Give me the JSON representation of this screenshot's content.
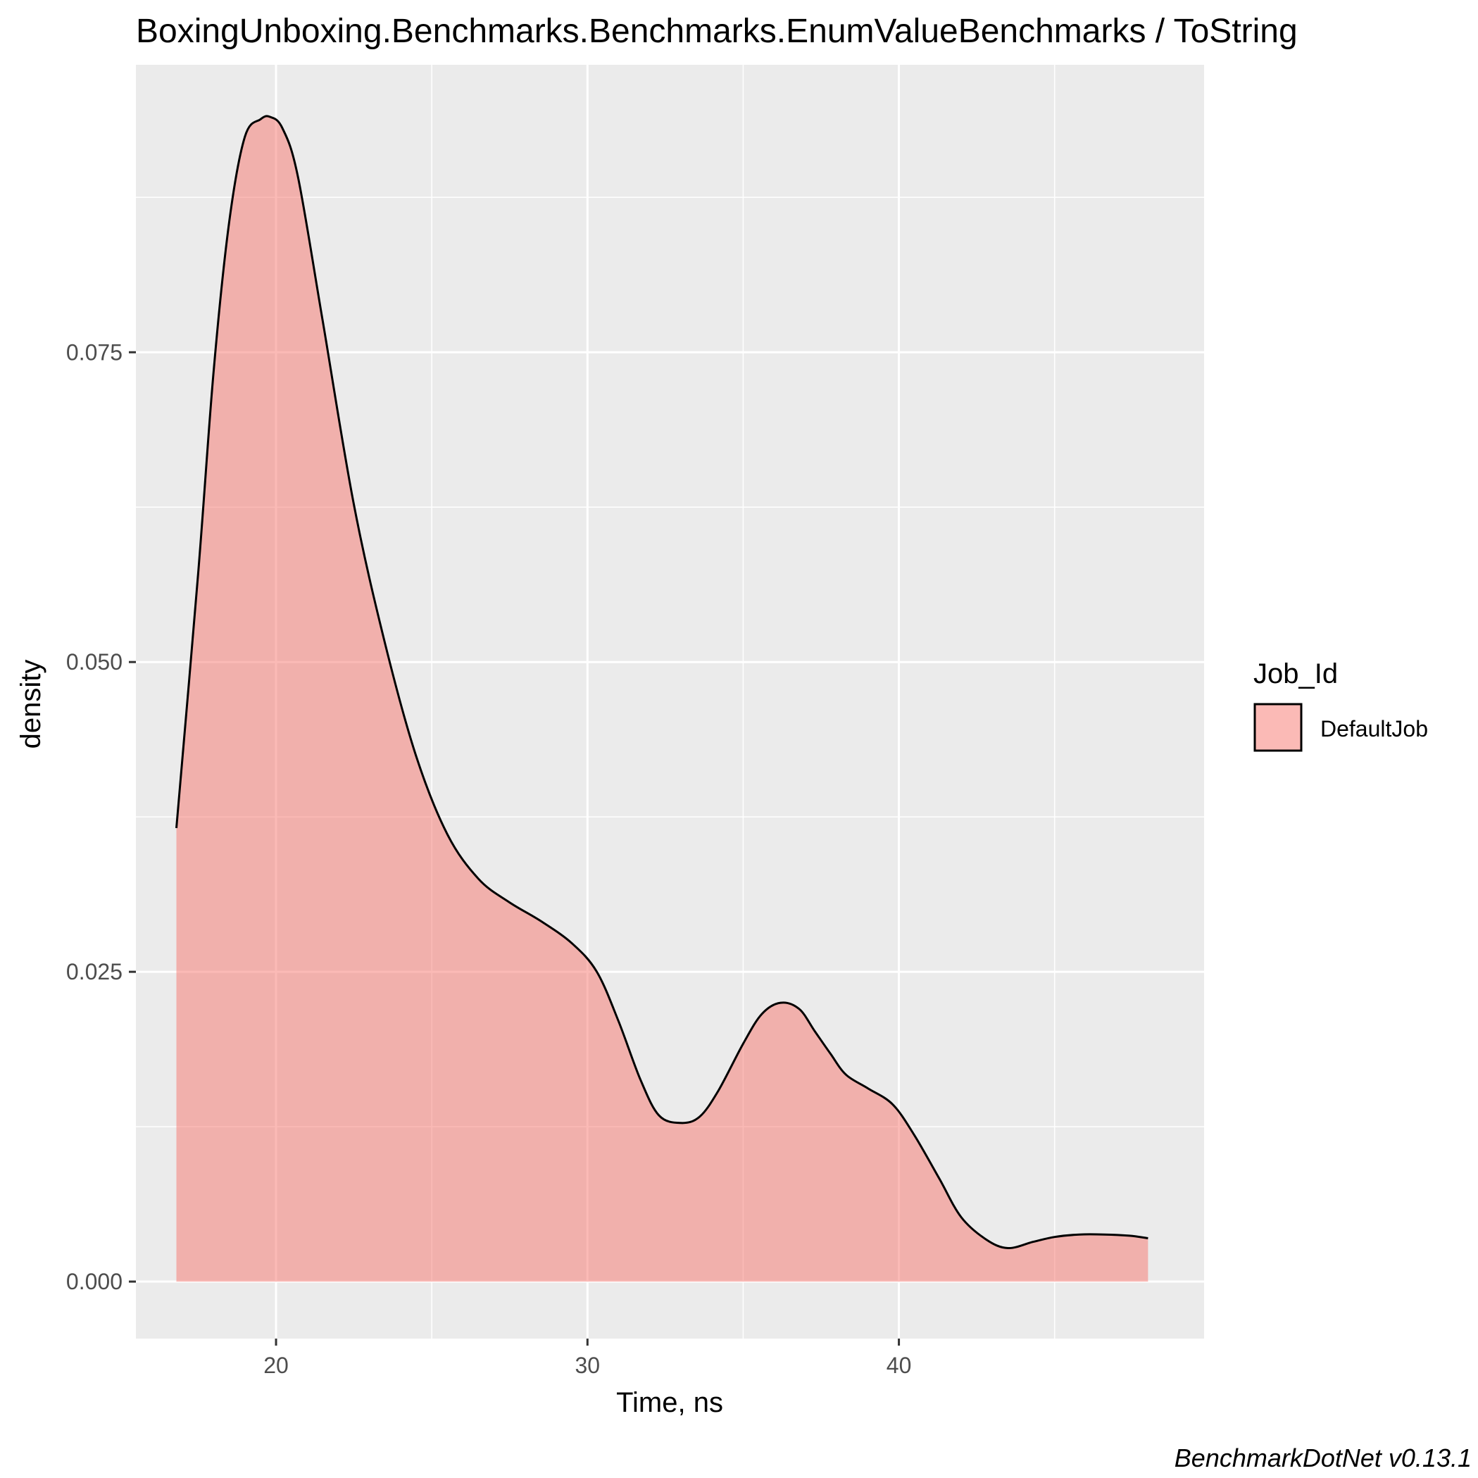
{
  "chart_data": {
    "type": "area",
    "title": "BoxingUnboxing.Benchmarks.Benchmarks.EnumValueBenchmarks / ToString",
    "xlabel": "Time, ns",
    "ylabel": "density",
    "caption": "BenchmarkDotNet v0.13.1",
    "xlim": [
      15.5,
      49.8
    ],
    "ylim": [
      -0.0046,
      0.0982
    ],
    "x_ticks": [
      20,
      30,
      40
    ],
    "x_tick_labels": [
      "20",
      "30",
      "40"
    ],
    "x_minor_ticks": [
      25,
      35,
      45
    ],
    "y_ticks": [
      0,
      0.025,
      0.05,
      0.075
    ],
    "y_tick_labels": [
      "0.000",
      "0.025",
      "0.050",
      "0.075"
    ],
    "y_minor_ticks": [
      0.0125,
      0.0375,
      0.0625,
      0.0875
    ],
    "grid": true,
    "panel_background": "#ebebeb",
    "fill_color": "#f8766d",
    "fill_opacity": 0.5,
    "line_color": "#000000",
    "legend": {
      "title": "Job_Id",
      "position": "right",
      "entries": [
        "DefaultJob"
      ]
    },
    "series": [
      {
        "name": "DefaultJob",
        "x": [
          16.8,
          17.5,
          18.0,
          18.5,
          19.0,
          19.5,
          19.8,
          20.2,
          20.7,
          21.5,
          22.5,
          23.5,
          24.5,
          25.5,
          26.5,
          27.5,
          28.5,
          29.5,
          30.3,
          31.0,
          31.7,
          32.3,
          33.0,
          33.6,
          34.2,
          35.0,
          35.6,
          36.2,
          36.8,
          37.3,
          37.8,
          38.3,
          39.0,
          39.8,
          40.5,
          41.3,
          42.0,
          42.8,
          43.5,
          44.3,
          45.0,
          45.8,
          46.6,
          47.4,
          48.0
        ],
        "y": [
          0.0366,
          0.0572,
          0.0736,
          0.0856,
          0.0924,
          0.0938,
          0.094,
          0.0931,
          0.0892,
          0.0775,
          0.0627,
          0.0515,
          0.0424,
          0.0361,
          0.0325,
          0.0306,
          0.0291,
          0.0273,
          0.025,
          0.021,
          0.0163,
          0.0134,
          0.0128,
          0.0133,
          0.0154,
          0.0192,
          0.0216,
          0.0225,
          0.022,
          0.0202,
          0.0184,
          0.0167,
          0.0156,
          0.0143,
          0.0118,
          0.0083,
          0.0052,
          0.0034,
          0.0027,
          0.0032,
          0.0036,
          0.0038,
          0.0038,
          0.0037,
          0.0035
        ]
      }
    ]
  }
}
